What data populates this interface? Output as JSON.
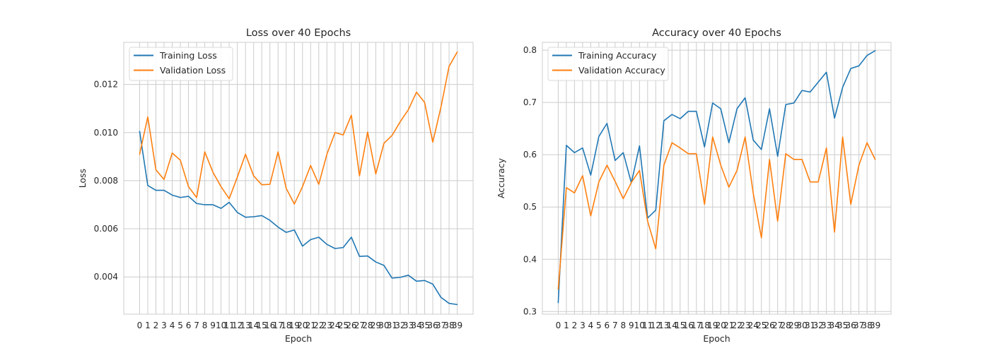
{
  "chart_data": [
    {
      "type": "line",
      "title": "Loss over 40 Epochs",
      "xlabel": "Epoch",
      "ylabel": "Loss",
      "grid": true,
      "legend_position": "top-left",
      "xlim": [
        -1.95,
        40.95
      ],
      "ylim": [
        0.00245,
        0.01375
      ],
      "yticks": [
        "0.004",
        "0.006",
        "0.008",
        "0.010",
        "0.012"
      ],
      "ytick_values": [
        0.004,
        0.006,
        0.008,
        0.01,
        0.012
      ],
      "x": [
        0,
        1,
        2,
        3,
        4,
        5,
        6,
        7,
        8,
        9,
        10,
        11,
        12,
        13,
        14,
        15,
        16,
        17,
        18,
        19,
        20,
        21,
        22,
        23,
        24,
        25,
        26,
        27,
        28,
        29,
        30,
        31,
        32,
        33,
        34,
        35,
        36,
        37,
        38,
        39
      ],
      "series": [
        {
          "name": "Training Loss",
          "color": "#1f77b4",
          "values": [
            0.01005,
            0.0078,
            0.0076,
            0.0076,
            0.0074,
            0.0073,
            0.00735,
            0.00705,
            0.007,
            0.007,
            0.00685,
            0.0071,
            0.00668,
            0.00648,
            0.0065,
            0.00655,
            0.00635,
            0.00607,
            0.00585,
            0.00595,
            0.00528,
            0.00555,
            0.00565,
            0.00535,
            0.00518,
            0.00522,
            0.00565,
            0.00485,
            0.00487,
            0.00462,
            0.00448,
            0.00395,
            0.00398,
            0.00407,
            0.00382,
            0.00385,
            0.0037,
            0.00315,
            0.0029,
            0.00285
          ]
        },
        {
          "name": "Validation Loss",
          "color": "#ff7f0e",
          "values": [
            0.0091,
            0.01065,
            0.00845,
            0.00805,
            0.00915,
            0.00885,
            0.00775,
            0.0073,
            0.0092,
            0.00835,
            0.00775,
            0.00725,
            0.00815,
            0.0091,
            0.0082,
            0.00783,
            0.00785,
            0.0092,
            0.00768,
            0.00703,
            0.00775,
            0.00863,
            0.00785,
            0.0091,
            0.01,
            0.0099,
            0.01072,
            0.0082,
            0.01002,
            0.00828,
            0.00955,
            0.00988,
            0.01045,
            0.01095,
            0.01168,
            0.01125,
            0.0096,
            0.01105,
            0.01275,
            0.01335
          ]
        }
      ]
    },
    {
      "type": "line",
      "title": "Accuracy over 40 Epochs",
      "xlabel": "Epoch",
      "ylabel": "Accuracy",
      "grid": true,
      "legend_position": "top-left",
      "xlim": [
        -1.95,
        40.95
      ],
      "ylim": [
        0.295,
        0.815
      ],
      "yticks": [
        "0.3",
        "0.4",
        "0.5",
        "0.6",
        "0.7",
        "0.8"
      ],
      "ytick_values": [
        0.3,
        0.4,
        0.5,
        0.6,
        0.7,
        0.8
      ],
      "x": [
        0,
        1,
        2,
        3,
        4,
        5,
        6,
        7,
        8,
        9,
        10,
        11,
        12,
        13,
        14,
        15,
        16,
        17,
        18,
        19,
        20,
        21,
        22,
        23,
        24,
        25,
        26,
        27,
        28,
        29,
        30,
        31,
        32,
        33,
        34,
        35,
        36,
        37,
        38,
        39
      ],
      "series": [
        {
          "name": "Training Accuracy",
          "color": "#1f77b4",
          "values": [
            0.317,
            0.618,
            0.604,
            0.613,
            0.561,
            0.635,
            0.66,
            0.589,
            0.604,
            0.546,
            0.617,
            0.479,
            0.494,
            0.665,
            0.677,
            0.669,
            0.683,
            0.683,
            0.615,
            0.699,
            0.688,
            0.623,
            0.688,
            0.709,
            0.628,
            0.61,
            0.688,
            0.597,
            0.696,
            0.699,
            0.723,
            0.72,
            0.739,
            0.758,
            0.67,
            0.729,
            0.765,
            0.77,
            0.79,
            0.799
          ]
        },
        {
          "name": "Validation Accuracy",
          "color": "#ff7f0e",
          "values": [
            0.343,
            0.537,
            0.527,
            0.56,
            0.483,
            0.548,
            0.58,
            0.549,
            0.516,
            0.547,
            0.57,
            0.473,
            0.42,
            0.58,
            0.623,
            0.613,
            0.602,
            0.602,
            0.505,
            0.634,
            0.58,
            0.538,
            0.57,
            0.634,
            0.526,
            0.441,
            0.591,
            0.473,
            0.602,
            0.591,
            0.591,
            0.548,
            0.548,
            0.613,
            0.452,
            0.634,
            0.505,
            0.58,
            0.623,
            0.591
          ]
        }
      ]
    }
  ]
}
